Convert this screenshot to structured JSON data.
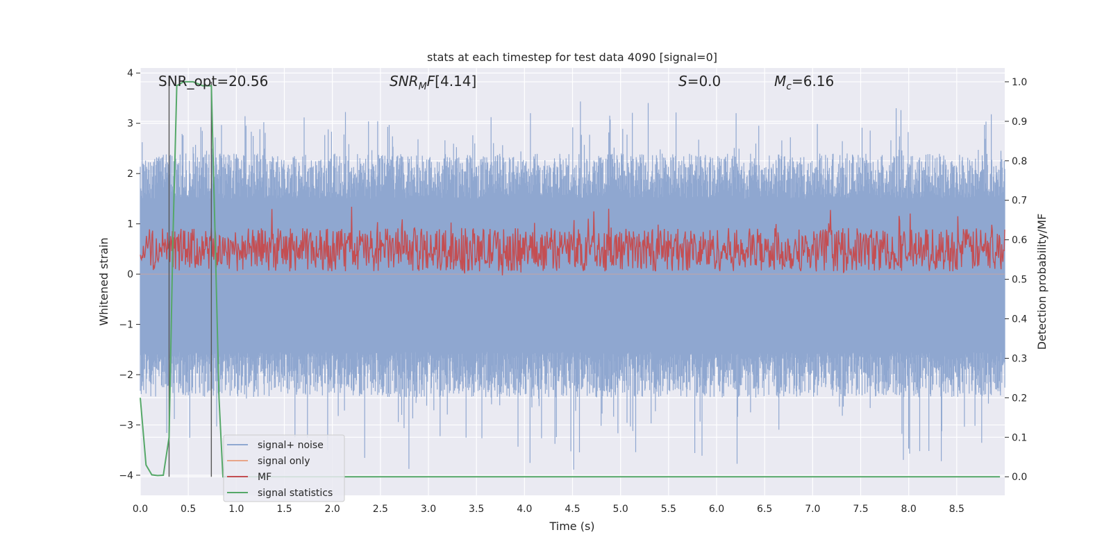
{
  "chart_data": {
    "type": "line",
    "title": "stats at each timestep for test data 4090 [signal=0]",
    "xlabel": "Time (s)",
    "ylabel": "Whitened strain",
    "y2label": "Detection probability/MF",
    "xlim": [
      0.0,
      9.0
    ],
    "ylim": [
      -4.4,
      4.1
    ],
    "y2lim": [
      -0.047,
      1.035
    ],
    "xticks": [
      "0.0",
      "0.5",
      "1.0",
      "1.5",
      "2.0",
      "2.5",
      "3.0",
      "3.5",
      "4.0",
      "4.5",
      "5.0",
      "5.5",
      "6.0",
      "6.5",
      "7.0",
      "7.5",
      "8.0",
      "8.5"
    ],
    "yticks": [
      "4",
      "3",
      "2",
      "1",
      "0",
      "−1",
      "−2",
      "−3",
      "−4"
    ],
    "y2ticks": [
      "1.0",
      "0.9",
      "0.8",
      "0.7",
      "0.6",
      "0.5",
      "0.4",
      "0.3",
      "0.2",
      "0.1",
      "0.0"
    ],
    "grid": true,
    "legend_position": "lower-left",
    "annotations": {
      "snr_opt": "SNR_opt=20.56",
      "snr_mf": "[4.14]",
      "s_value": "=0.0",
      "mc_value": "=6.16"
    },
    "vlines_x": [
      0.3,
      0.74
    ],
    "series": [
      {
        "name": "signal+ noise",
        "color": "#8fa7d0",
        "axis": "left",
        "kind": "noise",
        "range": [
          -4.0,
          3.7
        ]
      },
      {
        "name": "signal only",
        "color": "#e8a588",
        "axis": "left",
        "kind": "flat"
      },
      {
        "name": "MF",
        "color": "#c44e52",
        "axis": "right",
        "kind": "band",
        "range": [
          0.52,
          0.63
        ]
      },
      {
        "name": "signal statistics",
        "color": "#55a868",
        "axis": "right",
        "x": [
          0.0,
          0.06,
          0.12,
          0.18,
          0.24,
          0.3,
          0.34,
          0.38,
          0.45,
          0.55,
          0.65,
          0.74,
          0.78,
          0.82,
          0.86,
          1.0,
          2.0,
          3.0,
          4.0,
          5.0,
          6.0,
          7.0,
          8.0,
          8.95
        ],
        "y": [
          0.2,
          0.03,
          0.005,
          0.003,
          0.004,
          0.1,
          0.6,
          0.99,
          1.0,
          1.0,
          0.99,
          0.99,
          0.6,
          0.2,
          0.0,
          0.0,
          0.0,
          0.0,
          0.0,
          0.0,
          0.0,
          0.0,
          0.0,
          0.0
        ]
      }
    ]
  }
}
